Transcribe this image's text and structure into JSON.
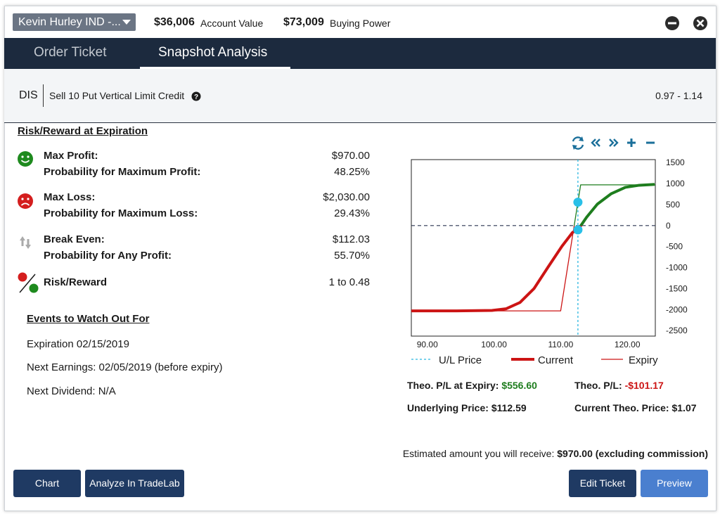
{
  "header": {
    "account": "Kevin Hurley IND -...",
    "account_value": "$36,006",
    "account_value_label": "Account Value",
    "buying_power": "$73,009",
    "buying_power_label": "Buying Power"
  },
  "tabs": [
    "Order Ticket",
    "Snapshot Analysis"
  ],
  "order": {
    "symbol": "DIS",
    "description": "Sell 10 Put Vertical Limit Credit",
    "range": "0.97 - 1.14"
  },
  "risk_reward": {
    "title": "Risk/Reward at Expiration",
    "items": [
      {
        "label": "Max Profit:",
        "value": "$970.00",
        "sub_label": "Probability for Maximum Profit:",
        "sub_value": "48.25%"
      },
      {
        "label": "Max Loss:",
        "value": "$2,030.00",
        "sub_label": "Probability for Maximum Loss:",
        "sub_value": "29.43%"
      },
      {
        "label": "Break Even:",
        "value": "$112.03",
        "sub_label": "Probability for Any Profit:",
        "sub_value": "55.70%"
      },
      {
        "label": "Risk/Reward",
        "value": "1 to 0.48"
      }
    ]
  },
  "events": {
    "title": "Events to Watch Out For",
    "items": [
      "Expiration 02/15/2019",
      "Next Earnings: 02/05/2019 (before expiry)",
      "Next Dividend: N/A"
    ]
  },
  "chart_data": {
    "type": "line",
    "xlim": [
      87.6,
      124.2
    ],
    "ylim": [
      -2630,
      1570
    ],
    "xticks": [
      {
        "value": 90,
        "label": "90.00"
      },
      {
        "value": 100,
        "label": "100.00"
      },
      {
        "value": 110,
        "label": "110.00"
      },
      {
        "value": 120,
        "label": "120.00"
      }
    ],
    "yticks": [
      1500,
      1000,
      500,
      0,
      -500,
      -1000,
      -1500,
      -2000,
      -2500
    ],
    "zero_line": true,
    "ul_price": {
      "name": "U/L Price",
      "x": 112.59,
      "color": "#29b6e0"
    },
    "series": [
      {
        "name": "Current",
        "color": "#cc1414",
        "positive_color": "#1e7d1e",
        "x": [
          87.6,
          94.4,
          99.7,
          101.8,
          103.9,
          106.0,
          108.1,
          110.2,
          111.8,
          112.6,
          113.9,
          115.5,
          117.6,
          119.7,
          121.8,
          124.1
        ],
        "values": [
          -2030,
          -2030,
          -2020,
          -1980,
          -1830,
          -1500,
          -990,
          -490,
          -160,
          -100,
          200,
          510,
          760,
          910,
          960,
          980
        ]
      },
      {
        "name": "Expiry",
        "color": "#cc1414",
        "positive_color": "#1e7d1e",
        "x": [
          87.6,
          110,
          113,
          124.2
        ],
        "values": [
          -2030,
          -2030,
          970,
          970
        ]
      }
    ],
    "markers": {
      "x": [
        112.59,
        112.59
      ],
      "values": [
        556.6,
        -101.17
      ],
      "color": "#29c0e8"
    }
  },
  "stats": [
    {
      "label": "Theo. P/L at Expiry:",
      "value": "$556.60"
    },
    {
      "label": "Theo. P/L:",
      "value": "-$101.17"
    },
    {
      "label": "Underlying Price:",
      "value": "$112.59"
    },
    {
      "label": "Current Theo. Price:",
      "value": "$1.07"
    }
  ],
  "estimate": {
    "label": "Estimated amount you will receive:",
    "value": "$970.00 (excluding commission)"
  },
  "buttons": [
    "Chart",
    "Analyze In TradeLab",
    "Edit Ticket",
    "Preview"
  ]
}
